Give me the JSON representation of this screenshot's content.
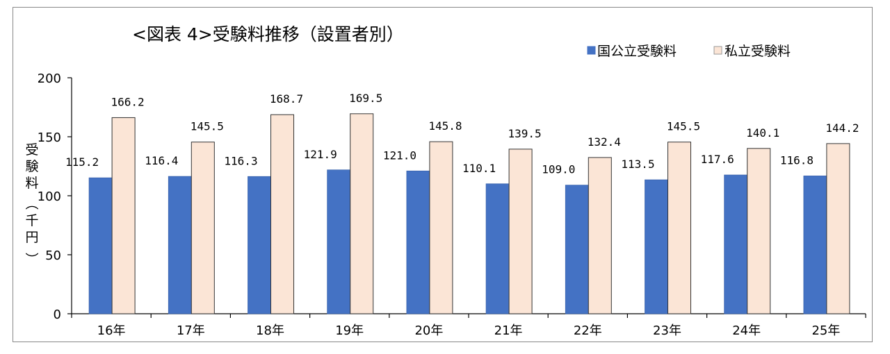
{
  "chart_data": {
    "type": "bar",
    "title": "<図表 4>受験料推移（設置者別）",
    "ylabel": "受験料（千円）",
    "xlabel": "",
    "categories": [
      "16年",
      "17年",
      "18年",
      "19年",
      "20年",
      "21年",
      "22年",
      "23年",
      "24年",
      "25年"
    ],
    "series": [
      {
        "name": "国公立受験料",
        "color": "#4472c4",
        "values": [
          115.2,
          116.4,
          116.3,
          121.9,
          121.0,
          110.1,
          109.0,
          113.5,
          117.6,
          116.8
        ],
        "labels": [
          "115.2",
          "116.4",
          "116.3",
          "121.9",
          "121.0",
          "110.1",
          "109.0",
          "113.5",
          "117.6",
          "116.8"
        ]
      },
      {
        "name": "私立受験料",
        "color": "#fbe5d6",
        "values": [
          166.2,
          145.5,
          168.7,
          169.5,
          145.8,
          139.5,
          132.4,
          145.5,
          140.1,
          144.2
        ],
        "labels": [
          "166.2",
          "145.5",
          "168.7",
          "169.5",
          "145.8",
          "139.5",
          "132.4",
          "145.5",
          "140.1",
          "144.2"
        ]
      }
    ],
    "ylim": [
      0,
      200
    ],
    "yticks": [
      "0",
      "50",
      "100",
      "150",
      "200"
    ],
    "legend_position": "top-right",
    "grid": false
  }
}
